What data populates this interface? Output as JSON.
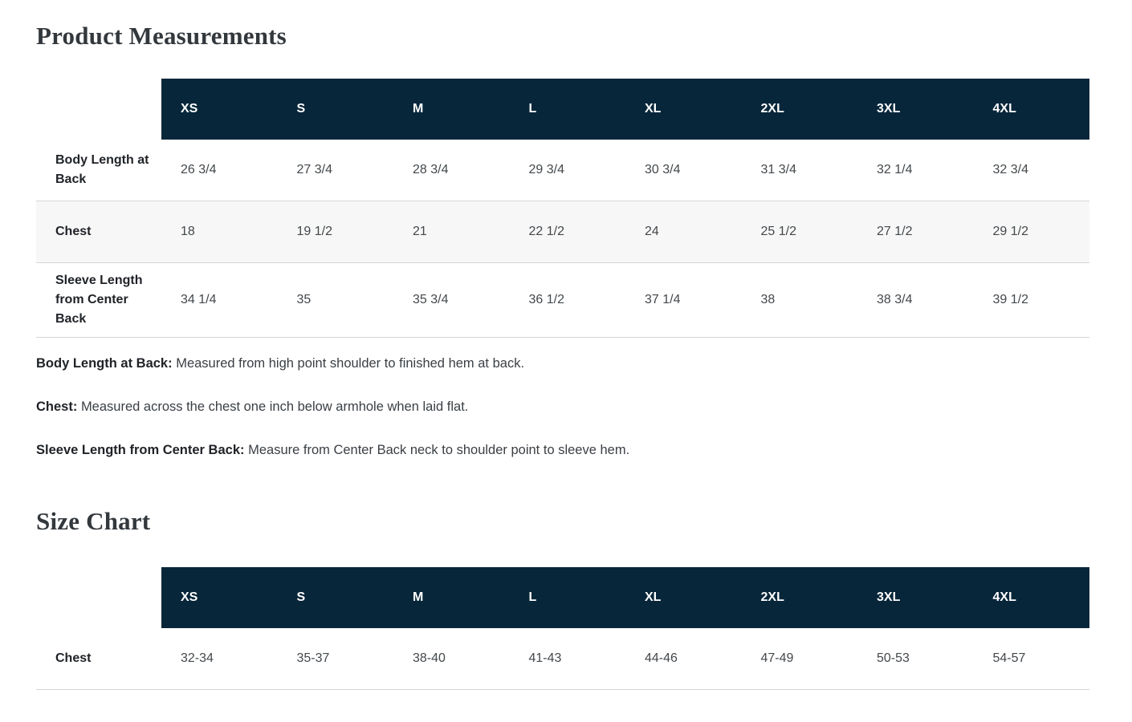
{
  "colors": {
    "header_bg": "#08263a",
    "header_text": "#ffffff",
    "stripe_bg": "#f7f7f7",
    "border": "#d5d5d5",
    "title_text": "#33383d",
    "label_text": "#202327",
    "value_text": "#43484c"
  },
  "product_measurements": {
    "title": "Product Measurements",
    "columns": [
      "XS",
      "S",
      "M",
      "L",
      "XL",
      "2XL",
      "3XL",
      "4XL"
    ],
    "rows": [
      {
        "label": "Body Length at Back",
        "values": [
          "26 3/4",
          "27 3/4",
          "28 3/4",
          "29 3/4",
          "30 3/4",
          "31 3/4",
          "32 1/4",
          "32 3/4"
        ]
      },
      {
        "label": "Chest",
        "values": [
          "18",
          "19 1/2",
          "21",
          "22 1/2",
          "24",
          "25 1/2",
          "27 1/2",
          "29 1/2"
        ]
      },
      {
        "label": "Sleeve Length from Center Back",
        "values": [
          "34 1/4",
          "35",
          "35 3/4",
          "36 1/2",
          "37 1/4",
          "38",
          "38 3/4",
          "39 1/2"
        ]
      }
    ],
    "notes": [
      {
        "term": "Body Length at Back:",
        "description": "Measured from high point shoulder to finished hem at back."
      },
      {
        "term": "Chest:",
        "description": "Measured across the chest one inch below armhole when laid flat."
      },
      {
        "term": "Sleeve Length from Center Back:",
        "description": "Measure from Center Back neck to shoulder point to sleeve hem."
      }
    ]
  },
  "size_chart": {
    "title": "Size Chart",
    "columns": [
      "XS",
      "S",
      "M",
      "L",
      "XL",
      "2XL",
      "3XL",
      "4XL"
    ],
    "rows": [
      {
        "label": "Chest",
        "values": [
          "32-34",
          "35-37",
          "38-40",
          "41-43",
          "44-46",
          "47-49",
          "50-53",
          "54-57"
        ]
      }
    ]
  }
}
